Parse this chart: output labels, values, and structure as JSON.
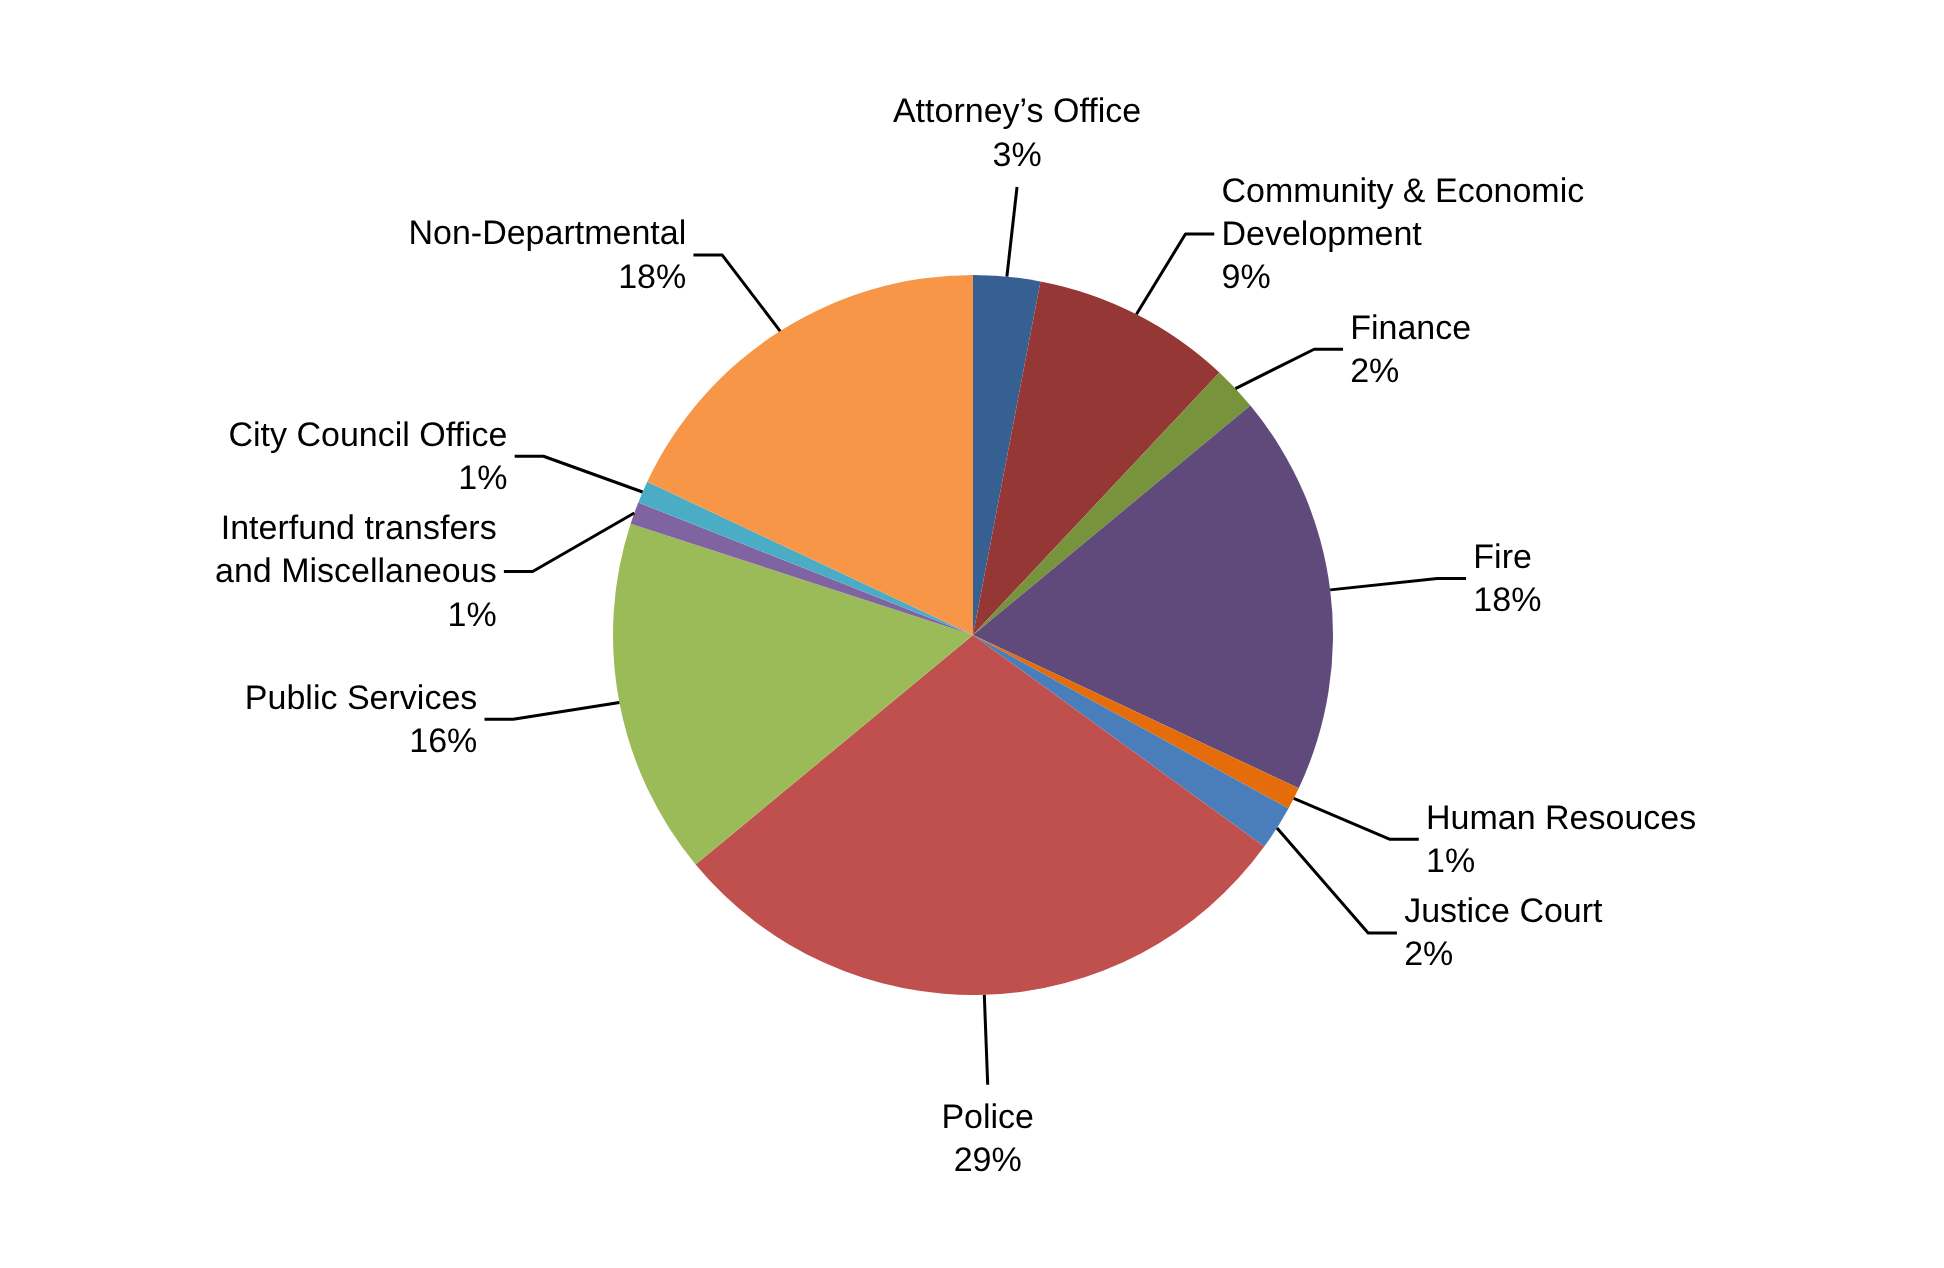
{
  "chart_data": {
    "type": "pie",
    "categories": [
      "Attorney’s Office",
      "Community & Economic Development",
      "Finance",
      "Fire",
      "Human Resouces",
      "Justice Court",
      "Police",
      "Public Services",
      "Interfund transfers and Miscellaneous",
      "City Council Office",
      "Non-Departmental"
    ],
    "values": [
      3,
      9,
      2,
      18,
      1,
      2,
      29,
      16,
      1,
      1,
      18
    ],
    "value_labels": [
      "3%",
      "9%",
      "2%",
      "18%",
      "1%",
      "2%",
      "29%",
      "16%",
      "1%",
      "1%",
      "18%"
    ],
    "colors": [
      "#376092",
      "#953735",
      "#77933c",
      "#604a7b",
      "#e46c0a",
      "#4a7ebb",
      "#c0504d",
      "#9bbb59",
      "#8064a2",
      "#4bacc6",
      "#f79646"
    ]
  }
}
